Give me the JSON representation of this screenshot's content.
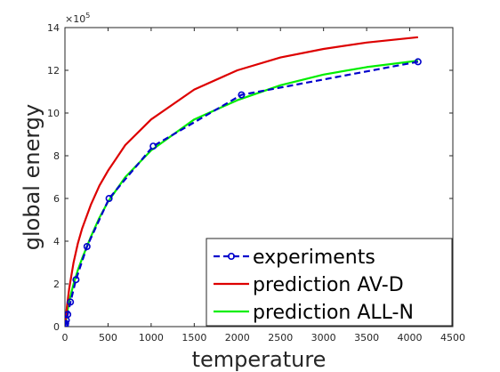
{
  "chart_data": {
    "type": "line",
    "title": "",
    "xlabel": "temperature",
    "ylabel": "global energy",
    "xlim": [
      0,
      4500
    ],
    "ylim": [
      0,
      1400000
    ],
    "y_exponent_label": "×10",
    "y_exponent_power": "5",
    "x_ticks": [
      0,
      500,
      1000,
      1500,
      2000,
      2500,
      3000,
      3500,
      4000,
      4500
    ],
    "x_tick_labels": [
      "0",
      "500",
      "1000",
      "1500",
      "2000",
      "2500",
      "3000",
      "3500",
      "4000",
      "4500"
    ],
    "y_ticks": [
      0,
      200000,
      400000,
      600000,
      800000,
      1000000,
      1200000,
      1400000
    ],
    "y_tick_labels": [
      "0",
      "2",
      "4",
      "6",
      "8",
      "10",
      "12",
      "14"
    ],
    "grid": false,
    "legend_position": "bottom-right",
    "series": [
      {
        "name": "experiments",
        "color": "#0000cc",
        "style": "dashed",
        "marker": "circle",
        "x": [
          1,
          2,
          4,
          8,
          16,
          32,
          64,
          128,
          256,
          512,
          1024,
          2048,
          4096
        ],
        "y": [
          2000,
          4000,
          8000,
          15000,
          30000,
          57000,
          115000,
          220000,
          375000,
          600000,
          845000,
          1085000,
          1240000
        ]
      },
      {
        "name": "prediction AV-D",
        "color": "#dd0000",
        "style": "solid",
        "marker": "none",
        "x": [
          0,
          25,
          50,
          100,
          150,
          200,
          300,
          400,
          500,
          700,
          1000,
          1500,
          2000,
          2500,
          3000,
          3500,
          4096
        ],
        "y": [
          0,
          100000,
          180000,
          300000,
          390000,
          460000,
          570000,
          660000,
          730000,
          850000,
          970000,
          1110000,
          1200000,
          1260000,
          1300000,
          1330000,
          1355000
        ]
      },
      {
        "name": "prediction ALL-N",
        "color": "#00ee00",
        "style": "solid",
        "marker": "none",
        "x": [
          0,
          25,
          50,
          100,
          150,
          200,
          300,
          400,
          500,
          700,
          1000,
          1500,
          2000,
          2500,
          3000,
          3500,
          4096
        ],
        "y": [
          0,
          65000,
          120000,
          200000,
          265000,
          320000,
          420000,
          510000,
          585000,
          700000,
          825000,
          970000,
          1060000,
          1130000,
          1180000,
          1215000,
          1245000
        ]
      }
    ]
  }
}
